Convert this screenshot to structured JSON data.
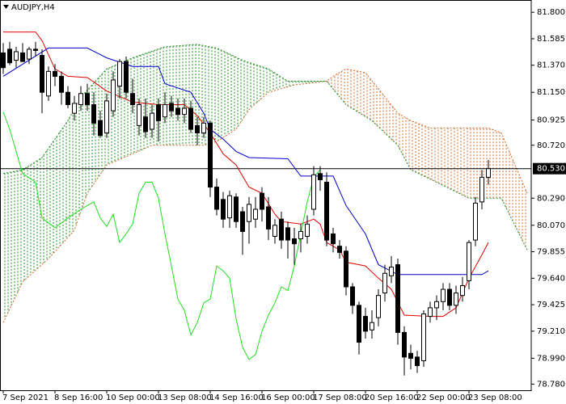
{
  "chart_data": {
    "type": "candlestick",
    "title": "AUDJPY,H4",
    "categories": [
      "7 Sep 2021",
      null,
      null,
      null,
      null,
      null,
      null,
      null,
      "8 Sep 16:00",
      null,
      null,
      null,
      null,
      null,
      null,
      null,
      "10 Sep 00:00",
      null,
      null,
      null,
      null,
      null,
      null,
      null,
      "13 Sep 08:00",
      null,
      null,
      null,
      null,
      null,
      null,
      null,
      "14 Sep 16:00",
      null,
      null,
      null,
      null,
      null,
      null,
      null,
      "16 Sep 00:00",
      null,
      null,
      null,
      null,
      null,
      null,
      null,
      "17 Sep 08:00",
      null,
      null,
      null,
      null,
      null,
      null,
      null,
      "20 Sep 16:00",
      null,
      null,
      null,
      null,
      null,
      null,
      null,
      "22 Sep 00:00",
      null,
      null,
      null,
      null,
      null,
      null,
      null,
      "23 Sep 08:00",
      null,
      null,
      null
    ],
    "open": [
      81.47,
      81.5,
      81.41,
      81.47,
      81.42,
      81.5,
      81.45,
      81.12,
      81.32,
      81.28,
      81.15,
      80.98,
      81.05,
      81.14,
      81.05,
      80.92,
      80.82,
      81.0,
      81.2,
      81.4,
      81.14,
      80.88,
      80.95,
      80.85,
      81.05,
      80.95,
      81.06,
      81.02,
      80.97,
      81.02,
      80.88,
      80.82,
      80.9,
      80.38,
      80.28,
      80.13,
      80.3,
      80.18,
      80.1,
      80.12,
      80.33,
      80.22,
      79.98,
      80.12,
      80.05,
      79.96,
      79.96,
      79.98,
      80.2,
      80.49,
      80.42,
      80.0,
      79.9,
      79.86,
      79.57,
      79.42,
      79.33,
      79.22,
      79.32,
      79.52,
      79.66,
      79.75,
      79.2,
      79.03,
      79.0,
      78.97,
      79.33,
      79.4,
      79.45,
      79.55,
      79.42,
      79.5,
      79.62,
      79.95,
      80.26,
      80.46
    ],
    "high": [
      81.55,
      81.56,
      81.52,
      81.55,
      81.52,
      81.56,
      81.5,
      81.36,
      81.38,
      81.32,
      81.2,
      81.12,
      81.2,
      81.22,
      81.15,
      81.0,
      81.14,
      81.32,
      81.42,
      81.44,
      81.26,
      81.1,
      81.1,
      81.05,
      81.1,
      81.15,
      81.12,
      81.1,
      81.1,
      81.08,
      80.95,
      80.95,
      80.92,
      80.45,
      80.34,
      80.35,
      80.33,
      80.22,
      80.3,
      80.3,
      80.38,
      80.3,
      80.12,
      80.18,
      80.1,
      80.05,
      80.08,
      80.15,
      80.55,
      80.55,
      80.5,
      80.05,
      79.95,
      79.9,
      79.6,
      79.45,
      79.4,
      79.38,
      79.55,
      79.75,
      79.82,
      79.8,
      79.25,
      79.1,
      79.05,
      79.38,
      79.45,
      79.5,
      79.6,
      79.6,
      79.58,
      79.65,
      79.95,
      80.3,
      80.52,
      80.6
    ],
    "low": [
      81.3,
      81.37,
      81.35,
      81.4,
      81.38,
      81.44,
      80.98,
      81.08,
      81.2,
      81.05,
      81.02,
      80.92,
      81.0,
      81.0,
      80.8,
      80.78,
      80.78,
      80.95,
      81.1,
      81.1,
      80.98,
      80.8,
      80.78,
      80.78,
      80.75,
      80.9,
      80.95,
      80.92,
      80.9,
      80.82,
      80.72,
      80.78,
      80.3,
      80.15,
      80.05,
      80.05,
      80.05,
      79.83,
      79.92,
      80.05,
      80.1,
      79.95,
      79.92,
      79.88,
      79.8,
      79.75,
      79.85,
      79.92,
      80.15,
      80.35,
      79.9,
      79.85,
      79.8,
      79.5,
      79.35,
      79.02,
      79.15,
      79.15,
      79.25,
      79.45,
      79.6,
      79.1,
      78.85,
      78.9,
      78.87,
      78.92,
      79.28,
      79.3,
      79.38,
      79.38,
      79.35,
      79.45,
      79.55,
      79.9,
      80.2,
      80.4
    ],
    "close": [
      81.35,
      81.39,
      81.48,
      81.4,
      81.5,
      81.49,
      81.15,
      81.32,
      81.28,
      81.15,
      81.05,
      81.06,
      81.14,
      81.05,
      80.9,
      80.8,
      81.08,
      81.25,
      81.4,
      81.15,
      81.05,
      81.05,
      80.83,
      80.98,
      80.92,
      81.05,
      81.0,
      80.97,
      81.02,
      80.85,
      80.82,
      80.9,
      80.38,
      80.2,
      80.12,
      80.31,
      80.1,
      80.02,
      80.24,
      80.2,
      80.2,
      80.04,
      80.07,
      79.95,
      79.95,
      79.92,
      80.02,
      80.08,
      80.48,
      80.44,
      79.95,
      79.92,
      79.85,
      79.57,
      79.42,
      79.12,
      79.21,
      79.28,
      79.5,
      79.68,
      79.73,
      79.2,
      79.0,
      78.99,
      78.93,
      79.35,
      79.4,
      79.45,
      79.55,
      79.42,
      79.52,
      79.58,
      79.93,
      80.25,
      80.46,
      80.53
    ],
    "up_color": "#ffffff",
    "down_color": "#000000",
    "lines": [
      {
        "color": "#e00000",
        "x": [
          0,
          5,
          6,
          8,
          10,
          13,
          16,
          20,
          24,
          28,
          30,
          32,
          34,
          36,
          38,
          40,
          42,
          43,
          46,
          48,
          49,
          50,
          52,
          53,
          56,
          58,
          60,
          62,
          66,
          68,
          70,
          72,
          74,
          75
        ],
        "values": [
          81.64,
          81.64,
          81.57,
          81.34,
          81.28,
          81.27,
          81.16,
          81.07,
          81.05,
          81.05,
          80.96,
          80.82,
          80.65,
          80.56,
          80.38,
          80.33,
          80.16,
          80.1,
          80.08,
          80.12,
          80.08,
          79.93,
          79.87,
          79.77,
          79.74,
          79.64,
          79.55,
          79.34,
          79.33,
          79.33,
          79.4,
          79.64,
          79.83,
          79.93
        ]
      },
      {
        "color": "#0000cc",
        "x": [
          0,
          7,
          13,
          16,
          20,
          24,
          25,
          29,
          31,
          32,
          34,
          36,
          38,
          44,
          46,
          51,
          53,
          56,
          58,
          61,
          74,
          75
        ],
        "values": [
          81.28,
          81.51,
          81.51,
          81.43,
          81.36,
          81.36,
          81.22,
          81.15,
          80.98,
          80.85,
          80.77,
          80.67,
          80.62,
          80.61,
          80.47,
          80.47,
          80.23,
          80.0,
          79.75,
          79.67,
          79.67,
          79.7
        ]
      },
      {
        "color": "#22dd22",
        "x": [
          0,
          1,
          3,
          5,
          6,
          8,
          10,
          12,
          14,
          15,
          16,
          17,
          18,
          19,
          20,
          21,
          22,
          23,
          24,
          25,
          26,
          27,
          28,
          29,
          30,
          31,
          32,
          33,
          34,
          35,
          36,
          37,
          38,
          39,
          40,
          41,
          42,
          43,
          44,
          45,
          46,
          47,
          48,
          49
        ],
        "values": [
          80.99,
          80.85,
          80.49,
          80.42,
          80.13,
          80.05,
          80.13,
          80.2,
          80.26,
          80.13,
          80.06,
          80.16,
          79.93,
          80.0,
          80.08,
          80.33,
          80.42,
          80.42,
          80.29,
          80.0,
          79.74,
          79.47,
          79.38,
          79.18,
          79.28,
          79.44,
          79.47,
          79.74,
          79.7,
          79.64,
          79.31,
          79.08,
          78.98,
          79.02,
          79.21,
          79.34,
          79.44,
          79.57,
          79.54,
          79.74,
          80.0,
          80.26,
          80.46,
          80.52
        ]
      }
    ],
    "cloud": [
      {
        "color": "#1f8a1f",
        "x": [
          0,
          3,
          6,
          10,
          12,
          16,
          20,
          25,
          30,
          33,
          37,
          41,
          44,
          48,
          50,
          53,
          57,
          61,
          63,
          67,
          72,
          77,
          81
        ],
        "values": [
          80.49,
          80.52,
          80.62,
          80.92,
          81.11,
          81.34,
          81.43,
          81.52,
          81.54,
          81.51,
          81.41,
          81.34,
          81.24,
          81.24,
          81.24,
          81.05,
          80.92,
          80.72,
          80.52,
          80.42,
          80.29,
          80.29,
          79.87
        ]
      },
      {
        "color": "#cc6a2a",
        "x": [
          0,
          3,
          7,
          11,
          13,
          16,
          20,
          23,
          31,
          33,
          36,
          38,
          41,
          45,
          50,
          51,
          53,
          56,
          58,
          61,
          63,
          66,
          75,
          77,
          81
        ],
        "values": [
          79.28,
          79.61,
          79.8,
          80.03,
          80.33,
          80.56,
          80.65,
          80.72,
          80.72,
          80.75,
          80.85,
          81.01,
          81.15,
          81.21,
          81.24,
          81.28,
          81.34,
          81.31,
          81.18,
          80.98,
          80.92,
          80.86,
          80.86,
          80.82,
          80.33
        ]
      }
    ],
    "ylim": [
      78.73,
      81.88
    ],
    "yticks": [
      {
        "value": 81.8,
        "label": "81.800"
      },
      {
        "value": 81.585,
        "label": "81.585"
      },
      {
        "value": 81.37,
        "label": "81.370"
      },
      {
        "value": 81.15,
        "label": "81.150"
      },
      {
        "value": 80.925,
        "label": "80.925"
      },
      {
        "value": 80.72,
        "label": "80.720"
      },
      {
        "value": 80.29,
        "label": "80.290"
      },
      {
        "value": 80.07,
        "label": "80.070"
      },
      {
        "value": 79.855,
        "label": "79.855"
      },
      {
        "value": 79.64,
        "label": "79.640"
      },
      {
        "value": 79.425,
        "label": "79.425"
      },
      {
        "value": 79.21,
        "label": "79.210"
      },
      {
        "value": 78.99,
        "label": "78.990"
      },
      {
        "value": 78.78,
        "label": "78.780"
      }
    ],
    "current_price": {
      "value": 80.53,
      "label": "80.530"
    }
  }
}
